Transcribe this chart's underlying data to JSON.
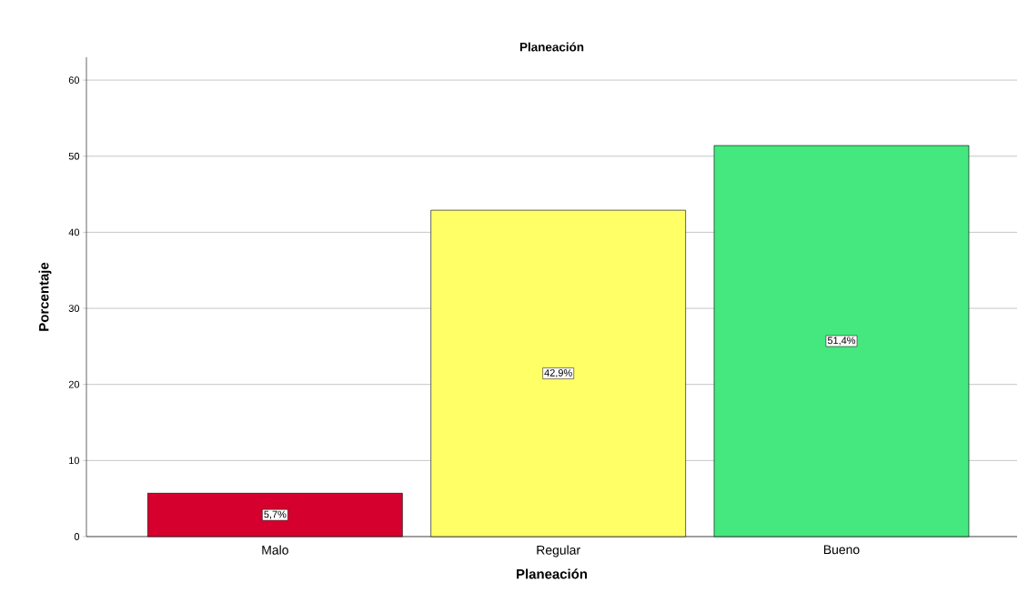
{
  "chart_data": {
    "type": "bar",
    "title": "Planeación",
    "xlabel": "Planeación",
    "ylabel": "Porcentaje",
    "categories": [
      "Malo",
      "Regular",
      "Bueno"
    ],
    "values": [
      5.7,
      42.9,
      51.4
    ],
    "colors": [
      "#d5002e",
      "#ffff66",
      "#44e87f"
    ],
    "value_labels": [
      "5,7%",
      "42,9%",
      "51,4%"
    ],
    "ylim": [
      0,
      63
    ],
    "yticks": [
      0,
      10,
      20,
      30,
      40,
      50,
      60
    ],
    "grid": "y"
  }
}
